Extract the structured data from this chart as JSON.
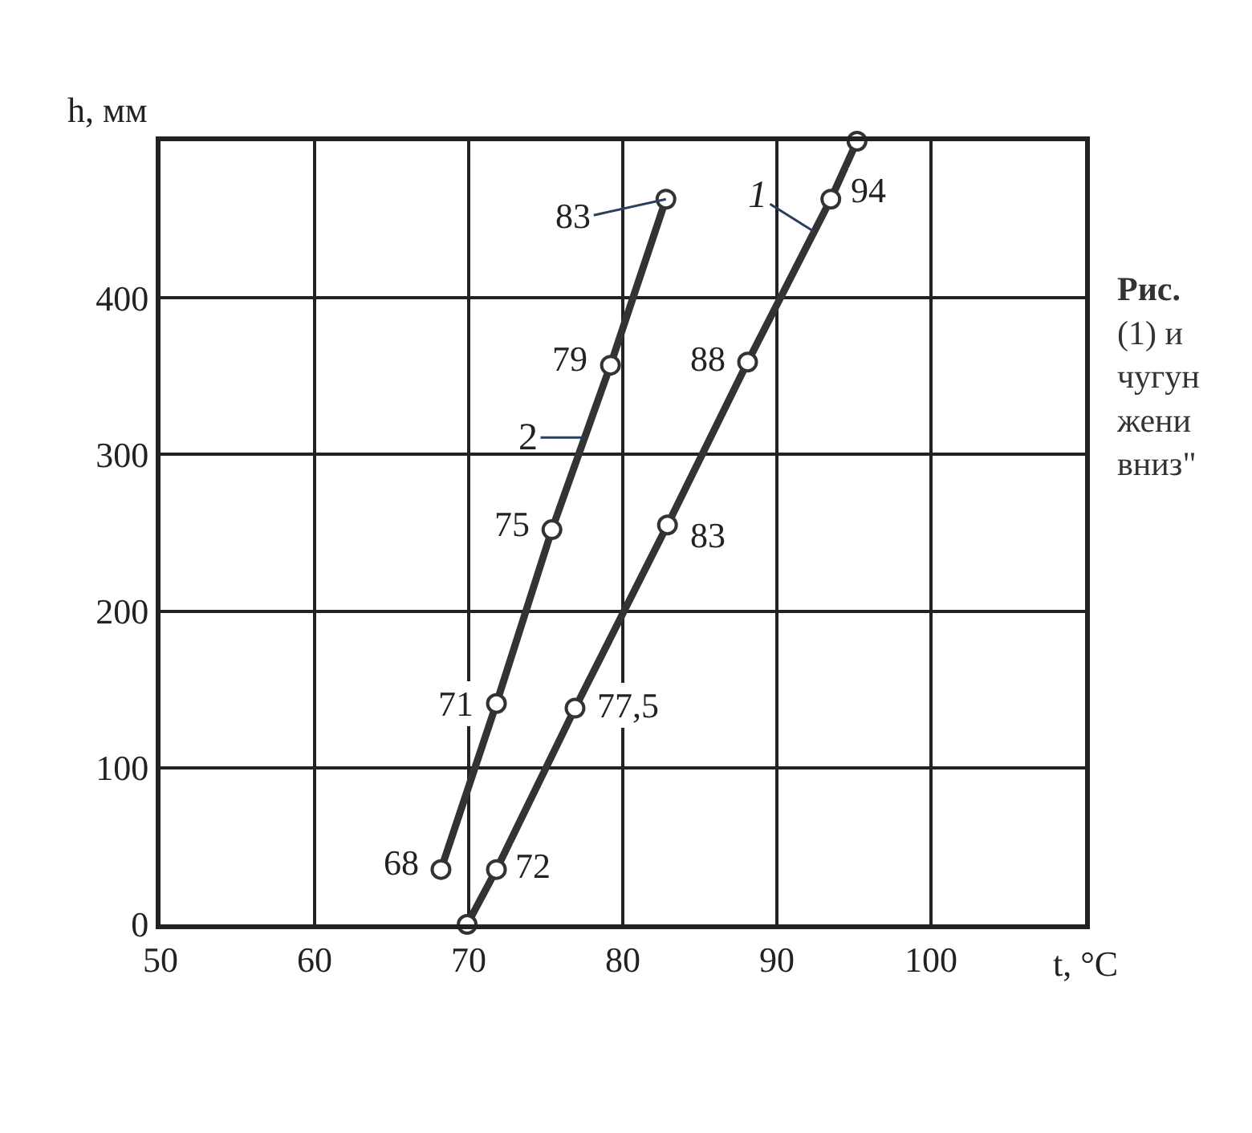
{
  "chart_data": {
    "type": "line",
    "xlabel": "t, °C",
    "ylabel": "h, мм",
    "xlim": [
      50,
      110
    ],
    "ylim": [
      0,
      500
    ],
    "xticks": [
      50,
      60,
      70,
      80,
      90,
      100
    ],
    "yticks": [
      0,
      100,
      200,
      300,
      400
    ],
    "grid": true,
    "legend": false,
    "marker": "circle",
    "line_style": "solid",
    "series": [
      {
        "name": "1",
        "color": "#333333",
        "x": [
          69.9,
          71.8,
          76.9,
          82.9,
          88.1,
          93.5,
          95.2
        ],
        "values": [
          0,
          35,
          138,
          255,
          359,
          463,
          500
        ]
      },
      {
        "name": "2",
        "color": "#333333",
        "x": [
          68.2,
          71.8,
          75.4,
          79.2,
          82.8
        ],
        "values": [
          35,
          141,
          252,
          357,
          463
        ]
      }
    ],
    "annotations": [
      {
        "text": "72",
        "x": 71.8,
        "y": 35
      },
      {
        "text": "77,5",
        "x": 76.9,
        "y": 138
      },
      {
        "text": "83",
        "x": 82.9,
        "y": 255
      },
      {
        "text": "88",
        "x": 88.1,
        "y": 359
      },
      {
        "text": "94",
        "x": 93.5,
        "y": 463
      },
      {
        "text": "68",
        "x": 68.2,
        "y": 35
      },
      {
        "text": "71",
        "x": 71.8,
        "y": 141
      },
      {
        "text": "75",
        "x": 75.4,
        "y": 252
      },
      {
        "text": "79",
        "x": 79.2,
        "y": 357
      },
      {
        "text": "83",
        "x": 82.8,
        "y": 463
      },
      "Рис.\n(1) и\nчугун\nжени\nвниз\""
    ]
  }
}
